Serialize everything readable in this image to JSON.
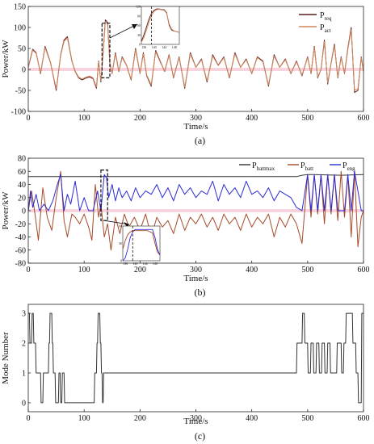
{
  "chart_data": [
    {
      "panel": "a",
      "type": "line",
      "caption": "(a)",
      "xlabel": "Time/s",
      "ylabel": "Power/kW",
      "xlim": [
        0,
        600
      ],
      "ylim": [
        -100,
        150
      ],
      "xticks": [
        0,
        100,
        200,
        300,
        400,
        500,
        600
      ],
      "yticks": [
        -100,
        -50,
        0,
        50,
        100,
        150
      ],
      "legend": "top-right",
      "series": [
        {
          "name": "P_req",
          "label_main": "P",
          "label_sub": "req",
          "color": "#5a1e1e",
          "x": [
            0,
            8,
            14,
            22,
            30,
            40,
            50,
            58,
            64,
            70,
            78,
            84,
            90,
            96,
            104,
            110,
            116,
            122,
            126,
            130,
            134,
            138,
            142,
            146,
            150,
            156,
            162,
            168,
            176,
            184,
            192,
            200,
            206,
            212,
            220,
            228,
            236,
            244,
            252,
            260,
            270,
            280,
            290,
            300,
            310,
            320,
            330,
            340,
            350,
            360,
            370,
            380,
            390,
            400,
            410,
            420,
            430,
            440,
            450,
            460,
            470,
            480,
            490,
            500,
            506,
            512,
            518,
            524,
            530,
            536,
            542,
            548,
            554,
            560,
            566,
            572,
            578,
            584,
            590,
            596,
            600
          ],
          "y": [
            5,
            48,
            40,
            -10,
            55,
            15,
            -50,
            35,
            70,
            78,
            20,
            -5,
            -20,
            -25,
            -20,
            -18,
            -22,
            -45,
            20,
            -30,
            40,
            118,
            112,
            15,
            -10,
            40,
            -5,
            30,
            10,
            -25,
            50,
            -10,
            40,
            -15,
            -40,
            45,
            20,
            -5,
            35,
            -20,
            30,
            -45,
            40,
            5,
            25,
            -30,
            35,
            10,
            30,
            -20,
            40,
            5,
            25,
            -10,
            30,
            20,
            -40,
            35,
            5,
            25,
            -10,
            20,
            -15,
            30,
            -10,
            55,
            -20,
            0,
            70,
            -35,
            15,
            60,
            -20,
            30,
            -10,
            50,
            100,
            -55,
            -50,
            30,
            -5
          ]
        },
        {
          "name": "P_act",
          "label_main": "P",
          "label_sub": "act",
          "color": "#d2875c",
          "x": [
            0,
            8,
            14,
            22,
            30,
            40,
            50,
            58,
            64,
            70,
            78,
            84,
            90,
            96,
            104,
            110,
            116,
            122,
            126,
            130,
            134,
            138,
            142,
            146,
            150,
            156,
            162,
            168,
            176,
            184,
            192,
            200,
            206,
            212,
            220,
            228,
            236,
            244,
            252,
            260,
            270,
            280,
            290,
            300,
            310,
            320,
            330,
            340,
            350,
            360,
            370,
            380,
            390,
            400,
            410,
            420,
            430,
            440,
            450,
            460,
            470,
            480,
            490,
            500,
            506,
            512,
            518,
            524,
            530,
            536,
            542,
            548,
            554,
            560,
            566,
            572,
            578,
            584,
            590,
            596,
            600
          ],
          "y": [
            4,
            46,
            38,
            -8,
            52,
            14,
            -46,
            33,
            67,
            75,
            19,
            -4,
            -18,
            -23,
            -18,
            -16,
            -20,
            -42,
            18,
            -27,
            37,
            114,
            109,
            13,
            -9,
            37,
            -4,
            28,
            9,
            -23,
            47,
            -9,
            37,
            -13,
            -37,
            42,
            18,
            -4,
            33,
            -18,
            28,
            -42,
            37,
            5,
            23,
            -27,
            32,
            9,
            28,
            -18,
            37,
            5,
            23,
            -9,
            28,
            18,
            -37,
            32,
            5,
            23,
            -9,
            18,
            -13,
            28,
            -9,
            52,
            -18,
            0,
            66,
            -32,
            14,
            56,
            -18,
            28,
            -9,
            47,
            95,
            -50,
            -46,
            28,
            -4
          ]
        }
      ],
      "inset": {
        "xlim": [
          135,
          150
        ],
        "ylim": [
          0,
          120
        ],
        "xticks": [
          136,
          140,
          144,
          148
        ],
        "yticks": [
          0,
          30,
          60,
          90,
          120
        ],
        "x": [
          135,
          136,
          137,
          138,
          139,
          140,
          141,
          142,
          143,
          144,
          145,
          146,
          147,
          148,
          149,
          150
        ],
        "y_req": [
          10,
          30,
          55,
          80,
          98,
          108,
          112,
          112,
          110,
          110,
          100,
          60,
          45,
          42,
          40,
          38
        ],
        "y_act": [
          6,
          22,
          45,
          70,
          90,
          104,
          110,
          111,
          109,
          108,
          98,
          64,
          48,
          43,
          40,
          38
        ]
      }
    },
    {
      "panel": "b",
      "type": "line",
      "caption": "(b)",
      "xlabel": "Time/s",
      "ylabel": "Power/kW",
      "xlim": [
        0,
        600
      ],
      "ylim": [
        -80,
        80
      ],
      "xticks": [
        0,
        100,
        200,
        300,
        400,
        500,
        600
      ],
      "yticks": [
        -80,
        -60,
        -40,
        -20,
        0,
        20,
        40,
        60,
        80
      ],
      "legend": "top-right",
      "series": [
        {
          "name": "P_battmax",
          "label_main": "P",
          "label_sub": "battmax",
          "color": "#333333",
          "x": [
            0,
            100,
            200,
            300,
            400,
            480,
            490,
            500,
            510,
            560,
            600
          ],
          "y": [
            52,
            52,
            52,
            52,
            52,
            52,
            54,
            55,
            55,
            54,
            55
          ]
        },
        {
          "name": "P_batt",
          "label_main": "P",
          "label_sub": "batt",
          "color": "#a64b2a",
          "x": [
            0,
            6,
            12,
            18,
            26,
            34,
            42,
            50,
            58,
            64,
            70,
            78,
            84,
            92,
            100,
            108,
            114,
            120,
            126,
            130,
            136,
            142,
            148,
            156,
            164,
            172,
            180,
            190,
            200,
            210,
            220,
            230,
            240,
            250,
            260,
            270,
            280,
            290,
            300,
            310,
            320,
            330,
            340,
            350,
            360,
            370,
            380,
            390,
            400,
            410,
            420,
            430,
            440,
            450,
            460,
            470,
            480,
            490,
            500,
            506,
            512,
            518,
            524,
            530,
            536,
            542,
            548,
            554,
            560,
            566,
            572,
            578,
            584,
            590,
            596,
            600
          ],
          "y": [
            0,
            30,
            -5,
            -45,
            35,
            -10,
            -30,
            20,
            60,
            -15,
            -40,
            -5,
            -10,
            -20,
            -5,
            -25,
            -45,
            40,
            -10,
            10,
            -40,
            -20,
            -60,
            -10,
            -35,
            -5,
            -25,
            -10,
            -30,
            -5,
            -40,
            -10,
            -25,
            -15,
            -35,
            -5,
            -30,
            -10,
            -20,
            -5,
            -25,
            -10,
            -30,
            -5,
            -20,
            -10,
            -30,
            -5,
            -25,
            -10,
            -20,
            -5,
            -40,
            -10,
            -25,
            -5,
            -20,
            -50,
            55,
            -10,
            55,
            -5,
            55,
            -20,
            55,
            -5,
            55,
            -15,
            60,
            -10,
            55,
            -40,
            60,
            -55,
            -10,
            0
          ]
        },
        {
          "name": "P_eng",
          "label_main": "P",
          "label_sub": "eng",
          "color": "#2b2bd6",
          "x": [
            0,
            4,
            8,
            14,
            20,
            28,
            36,
            44,
            52,
            58,
            64,
            70,
            76,
            84,
            92,
            100,
            108,
            116,
            124,
            130,
            136,
            140,
            144,
            150,
            156,
            162,
            168,
            176,
            184,
            192,
            200,
            210,
            220,
            230,
            240,
            250,
            260,
            270,
            280,
            290,
            300,
            310,
            320,
            330,
            340,
            350,
            360,
            370,
            380,
            390,
            400,
            410,
            420,
            430,
            440,
            450,
            460,
            470,
            480,
            490,
            500,
            506,
            512,
            518,
            524,
            530,
            536,
            542,
            548,
            554,
            560,
            566,
            572,
            578,
            584,
            590,
            596,
            600
          ],
          "y": [
            0,
            30,
            5,
            25,
            0,
            10,
            0,
            15,
            40,
            55,
            0,
            25,
            10,
            45,
            0,
            20,
            0,
            0,
            30,
            0,
            55,
            50,
            20,
            40,
            15,
            35,
            20,
            30,
            15,
            35,
            20,
            30,
            25,
            40,
            20,
            35,
            15,
            40,
            25,
            35,
            20,
            30,
            25,
            45,
            15,
            40,
            25,
            35,
            20,
            45,
            25,
            30,
            20,
            35,
            15,
            30,
            25,
            20,
            5,
            0,
            55,
            0,
            55,
            0,
            55,
            0,
            55,
            0,
            55,
            0,
            0,
            0,
            55,
            0,
            60,
            30,
            0,
            0
          ]
        }
      ],
      "inset": {
        "xlim": [
          135,
          150
        ],
        "ylim": [
          0,
          60
        ],
        "xticks": [
          136,
          140,
          144,
          148
        ],
        "yticks": [
          0,
          30,
          60
        ],
        "x": [
          135,
          136,
          137,
          138,
          139,
          140,
          141,
          142,
          143,
          144,
          145,
          146,
          147,
          148,
          149,
          150
        ],
        "y_batt": [
          20,
          35,
          45,
          50,
          52,
          52,
          52,
          52,
          52,
          52,
          52,
          50,
          48,
          30,
          15,
          10
        ],
        "y_eng": [
          0,
          5,
          20,
          40,
          50,
          54,
          54,
          54,
          54,
          54,
          54,
          54,
          54,
          40,
          20,
          10
        ]
      }
    },
    {
      "panel": "c",
      "type": "line",
      "caption": "(c)",
      "xlabel": "Time/s",
      "ylabel": "Mode Number",
      "xlim": [
        0,
        600
      ],
      "ylim": [
        -0.3,
        3.3
      ],
      "xticks": [
        0,
        100,
        200,
        300,
        400,
        500,
        600
      ],
      "yticks": [
        0,
        1,
        2,
        3
      ],
      "series": [
        {
          "name": "mode",
          "color": "#333333",
          "x": [
            0,
            2,
            3,
            6,
            7,
            9,
            10,
            13,
            14,
            22,
            23,
            26,
            27,
            36,
            37,
            38,
            39,
            42,
            43,
            44,
            45,
            48,
            49,
            54,
            55,
            57,
            58,
            60,
            61,
            64,
            65,
            118,
            119,
            122,
            123,
            124,
            125,
            128,
            129,
            130,
            131,
            132,
            133,
            134,
            135,
            480,
            481,
            490,
            491,
            494,
            495,
            500,
            501,
            505,
            506,
            510,
            511,
            515,
            516,
            520,
            521,
            525,
            526,
            530,
            531,
            535,
            536,
            540,
            541,
            552,
            553,
            560,
            561,
            564,
            565,
            568,
            569,
            580,
            581,
            586,
            587,
            590,
            591,
            596,
            597,
            600
          ],
          "y": [
            3,
            3,
            2,
            2,
            3,
            3,
            2,
            2,
            1,
            1,
            0,
            0,
            1,
            1,
            2,
            2,
            3,
            3,
            2,
            2,
            1,
            1,
            0,
            0,
            1,
            1,
            0,
            0,
            1,
            1,
            0,
            0,
            1,
            1,
            2,
            2,
            3,
            3,
            2,
            2,
            1,
            1,
            0,
            0,
            1,
            1,
            2,
            2,
            3,
            3,
            2,
            2,
            1,
            1,
            2,
            2,
            1,
            1,
            2,
            2,
            1,
            1,
            2,
            2,
            1,
            1,
            2,
            2,
            1,
            1,
            2,
            2,
            1,
            1,
            2,
            2,
            3,
            3,
            2,
            2,
            1,
            1,
            0,
            0,
            3,
            3
          ]
        }
      ]
    }
  ]
}
